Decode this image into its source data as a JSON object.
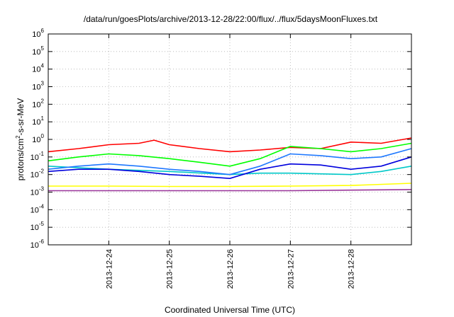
{
  "chart_data": {
    "type": "line",
    "title": "/data/run/goesPlots/archive/2013-12-28/22:00/flux/../flux/5daysMoonFluxes.txt",
    "xlabel": "Coordinated Universal Time (UTC)",
    "ylabel_parts": {
      "base": "protons/cm",
      "sup": "2",
      "rest": "-s-sr-MeV"
    },
    "yscale": "log",
    "ylim_exp": [
      -6,
      6
    ],
    "yticks": [
      {
        "base": "10",
        "exp": "6"
      },
      {
        "base": "10",
        "exp": "5"
      },
      {
        "base": "10",
        "exp": "4"
      },
      {
        "base": "10",
        "exp": "3"
      },
      {
        "base": "10",
        "exp": "2"
      },
      {
        "base": "10",
        "exp": "1"
      },
      {
        "base": "10",
        "exp": "0"
      },
      {
        "base": "10",
        "exp": "-1"
      },
      {
        "base": "10",
        "exp": "-2"
      },
      {
        "base": "10",
        "exp": "-3"
      },
      {
        "base": "10",
        "exp": "-4"
      },
      {
        "base": "10",
        "exp": "-5"
      },
      {
        "base": "10",
        "exp": "-6"
      }
    ],
    "xlim_days": [
      "2013-12-23 00:00",
      "2013-12-29 00:00"
    ],
    "xticks": [
      "2013-12-24",
      "2013-12-25",
      "2013-12-26",
      "2013-12-27",
      "2013-12-28"
    ],
    "grid": true,
    "series": [
      {
        "color": "#ff0000",
        "x": [
          "2013-12-23",
          "2013-12-23 12:00",
          "2013-12-24",
          "2013-12-24 12:00",
          "2013-12-24 18:00",
          "2013-12-25",
          "2013-12-25 12:00",
          "2013-12-26",
          "2013-12-26 12:00",
          "2013-12-27",
          "2013-12-27 12:00",
          "2013-12-28",
          "2013-12-28 12:00",
          "2013-12-29"
        ],
        "y": [
          0.2,
          0.3,
          0.5,
          0.6,
          0.9,
          0.5,
          0.3,
          0.2,
          0.25,
          0.35,
          0.3,
          0.7,
          0.6,
          1.2
        ]
      },
      {
        "color": "#00ff00",
        "x": [
          "2013-12-23",
          "2013-12-23 12:00",
          "2013-12-24",
          "2013-12-24 12:00",
          "2013-12-25",
          "2013-12-25 12:00",
          "2013-12-26",
          "2013-12-26 12:00",
          "2013-12-27",
          "2013-12-27 12:00",
          "2013-12-28",
          "2013-12-28 12:00",
          "2013-12-29"
        ],
        "y": [
          0.06,
          0.1,
          0.15,
          0.12,
          0.08,
          0.05,
          0.03,
          0.08,
          0.4,
          0.3,
          0.2,
          0.3,
          0.6
        ]
      },
      {
        "color": "#00c8c8",
        "x": [
          "2013-12-23",
          "2013-12-24",
          "2013-12-25",
          "2013-12-26",
          "2013-12-26 12:00",
          "2013-12-27",
          "2013-12-28",
          "2013-12-28 12:00",
          "2013-12-29"
        ],
        "y": [
          0.03,
          0.02,
          0.015,
          0.01,
          0.012,
          0.012,
          0.01,
          0.015,
          0.03
        ]
      },
      {
        "color": "#1e78ff",
        "x": [
          "2013-12-23",
          "2013-12-23 12:00",
          "2013-12-24",
          "2013-12-24 12:00",
          "2013-12-25",
          "2013-12-25 12:00",
          "2013-12-26",
          "2013-12-26 12:00",
          "2013-12-27",
          "2013-12-27 12:00",
          "2013-12-28",
          "2013-12-28 12:00",
          "2013-12-29"
        ],
        "y": [
          0.02,
          0.03,
          0.04,
          0.03,
          0.02,
          0.015,
          0.01,
          0.03,
          0.15,
          0.12,
          0.08,
          0.1,
          0.3
        ]
      },
      {
        "color": "#0000dd",
        "x": [
          "2013-12-23",
          "2013-12-23 12:00",
          "2013-12-24",
          "2013-12-24 12:00",
          "2013-12-25",
          "2013-12-25 12:00",
          "2013-12-26",
          "2013-12-26 12:00",
          "2013-12-27",
          "2013-12-27 12:00",
          "2013-12-28",
          "2013-12-28 12:00",
          "2013-12-29"
        ],
        "y": [
          0.015,
          0.02,
          0.02,
          0.015,
          0.01,
          0.008,
          0.006,
          0.02,
          0.04,
          0.035,
          0.02,
          0.03,
          0.1
        ]
      },
      {
        "color": "#ffff00",
        "x": [
          "2013-12-23",
          "2013-12-24",
          "2013-12-25",
          "2013-12-26",
          "2013-12-27",
          "2013-12-28",
          "2013-12-29"
        ],
        "y": [
          0.0022,
          0.0022,
          0.0021,
          0.0021,
          0.0022,
          0.0024,
          0.0032
        ]
      },
      {
        "color": "#993399",
        "x": [
          "2013-12-23",
          "2013-12-24",
          "2013-12-25",
          "2013-12-26",
          "2013-12-27",
          "2013-12-28",
          "2013-12-29"
        ],
        "y": [
          0.0012,
          0.0012,
          0.0012,
          0.0012,
          0.0012,
          0.0013,
          0.0014
        ]
      }
    ]
  }
}
